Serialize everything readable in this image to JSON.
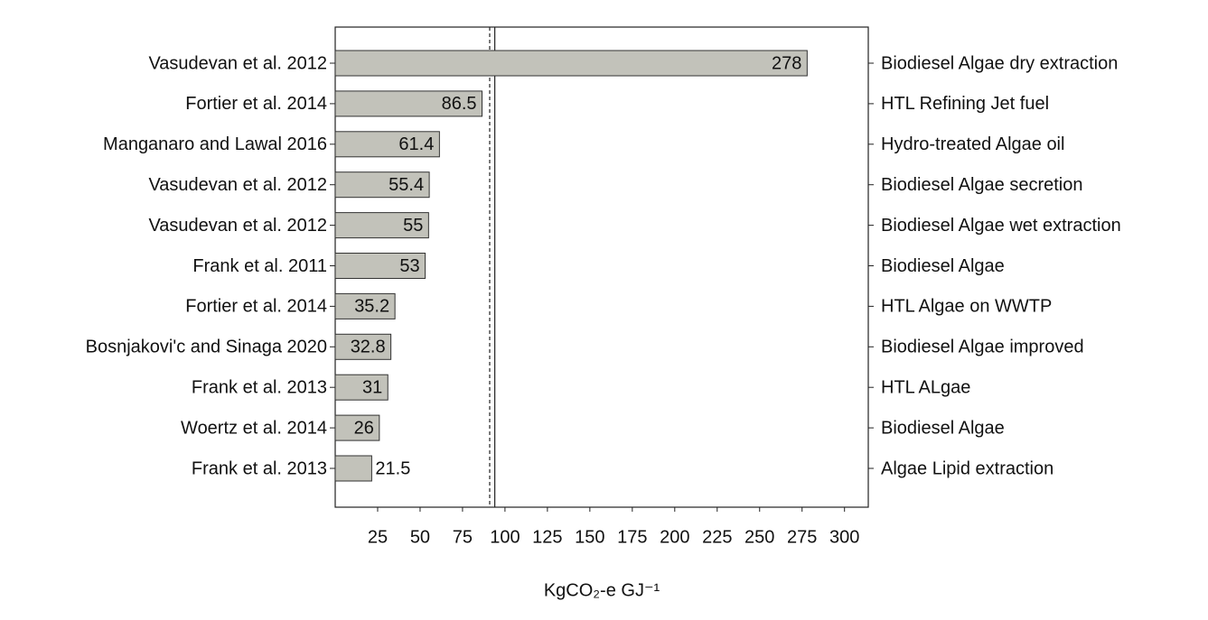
{
  "chart_data": {
    "type": "bar",
    "orientation": "horizontal",
    "categories": [
      "Vasudevan  et al. 2012",
      "Fortier  et al. 2014",
      "Manganaro and Lawal 2016",
      "Vasudevan  et al. 2012",
      "Vasudevan  et al. 2012",
      "Frank et al. 2011",
      "Fortier et al. 2014",
      "Bosnjakovi'c and Sinaga 2020",
      "Frank et al. 2013",
      "Woertz et al. 2014",
      "Frank et al. 2013"
    ],
    "right_labels": [
      "Biodiesel Algae dry extraction",
      "HTL Refining Jet fuel",
      "Hydro-treated Algae oil",
      "Biodiesel Algae secretion",
      "Biodiesel Algae wet extraction",
      "Biodiesel Algae",
      "HTL Algae on WWTP",
      "Biodiesel Algae improved",
      "HTL ALgae",
      "Biodiesel Algae",
      "Algae Lipid extraction"
    ],
    "values": [
      278,
      86.5,
      61.4,
      55.4,
      55,
      53,
      35.2,
      32.8,
      31,
      26,
      21.5
    ],
    "color": "#c2c2ba",
    "xlabel": "KgCO₂-e GJ⁻¹",
    "xlim": [
      0,
      314
    ],
    "xticks": [
      25,
      50,
      75,
      100,
      125,
      150,
      175,
      200,
      225,
      250,
      275,
      300
    ],
    "reference_lines": [
      {
        "value": 91,
        "style": "dashed"
      },
      {
        "value": 94,
        "style": "solid"
      }
    ],
    "grid": false
  }
}
